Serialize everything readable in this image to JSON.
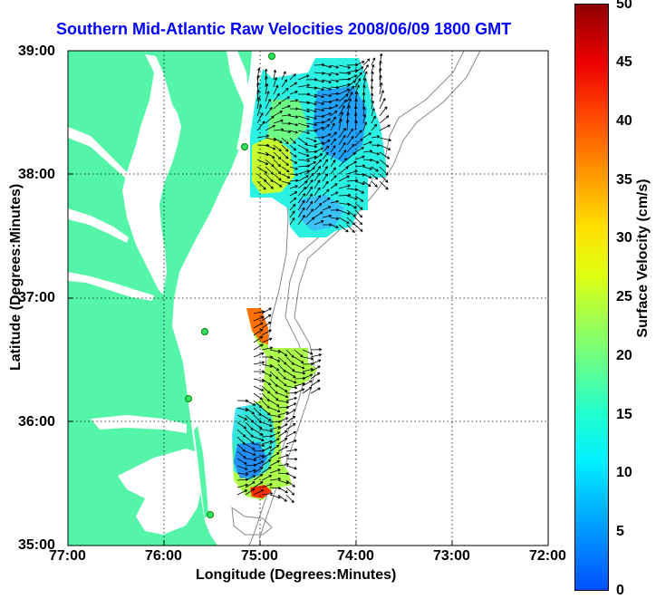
{
  "title": "Southern Mid-Atlantic Raw Velocities 2008/06/09 1800 GMT",
  "x_axis": {
    "label": "Longitude (Degrees:Minutes)",
    "ticks": [
      "77:00",
      "76:00",
      "75:00",
      "74:00",
      "73:00",
      "72:00"
    ]
  },
  "y_axis": {
    "label": "Latitude (Degrees:Minutes)",
    "ticks": [
      "39:00",
      "38:00",
      "37:00",
      "36:00",
      "35:00"
    ]
  },
  "colorbar": {
    "label": "Surface Velocity (cm/s)",
    "ticks": [
      "50",
      "45",
      "40",
      "35",
      "30",
      "25",
      "20",
      "15",
      "10",
      "5",
      "0"
    ],
    "min": 0,
    "max": 50
  },
  "colors": {
    "land": "#54f5a8",
    "title": "#0000ff",
    "grid": "#000000",
    "bathymetry": "#888888"
  },
  "legend_placement": "right",
  "grid": true
}
